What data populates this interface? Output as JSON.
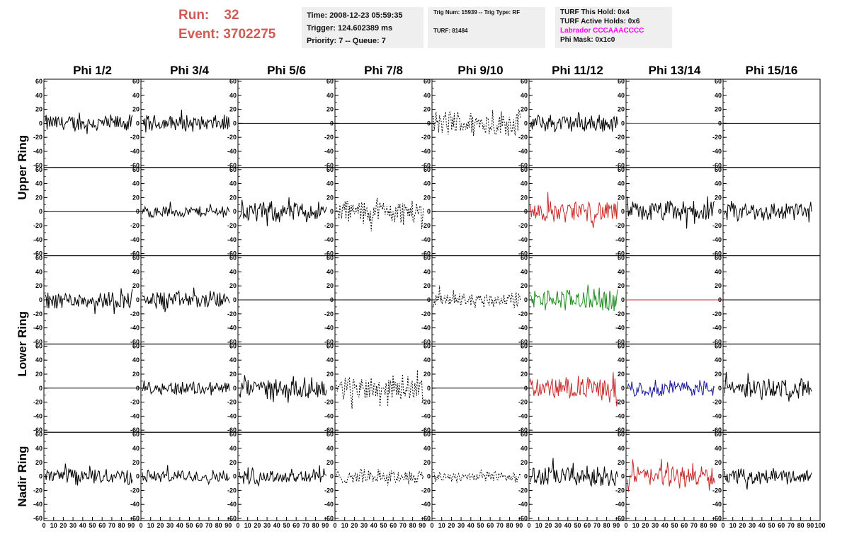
{
  "header": {
    "run_label": "Run:",
    "run_value": "32",
    "event_label": "Event:",
    "event_value": "3702275"
  },
  "time_box": {
    "time": "Time: 2008-12-23 05:59:35",
    "trigger": "Trigger: 124.602389 ms",
    "priority": "Priority: 7 -- Queue: 7"
  },
  "trig_box": {
    "trig_line": "Trig Num: 15939 -- Trig Type: RF",
    "turf_line": "TURF: 81484"
  },
  "turf_box": {
    "this_hold": "TURF This Hold: 0x4",
    "active_holds": "TURF Active Holds: 0x6",
    "labrador": "Labrador CCCAAACCCC",
    "phi_mask": "Phi Mask: 0x1c0"
  },
  "colors": {
    "run_text": "#d25a55",
    "labrador": "#ff00ff",
    "black": "#000000",
    "red": "#c62828",
    "green": "#1e8c1e",
    "blue": "#1a1a9a"
  },
  "chart_data": {
    "type": "line",
    "columns": [
      "Phi 1/2",
      "Phi 3/4",
      "Phi 5/6",
      "Phi 7/8",
      "Phi 9/10",
      "Phi 11/12",
      "Phi 13/14",
      "Phi 15/16"
    ],
    "ring_labels": [
      "Upper Ring",
      "Lower Ring",
      "Nadir Ring"
    ],
    "ylim": [
      -60,
      60
    ],
    "yticks": [
      -60,
      -40,
      -20,
      0,
      20,
      40,
      60
    ],
    "ytick_labels": [
      "-60",
      "-40",
      "-20",
      "0",
      "20",
      "40",
      "60"
    ],
    "xlim": [
      0,
      100
    ],
    "xticks": [
      0,
      10,
      20,
      30,
      40,
      50,
      60,
      70,
      80,
      90,
      100
    ],
    "xtick_labels": [
      "0",
      "10",
      "20",
      "30",
      "40",
      "50",
      "60",
      "70",
      "80",
      "90",
      "100"
    ],
    "rows": [
      [
        {
          "style": "solid",
          "color": "black",
          "amp": 12
        },
        {
          "style": "solid",
          "color": "black",
          "amp": 11
        },
        {
          "style": "flat",
          "color": "black",
          "amp": 0
        },
        {
          "style": "flat",
          "color": "black",
          "amp": 0
        },
        {
          "style": "dashed",
          "color": "black",
          "amp": 18
        },
        {
          "style": "solid",
          "color": "black",
          "amp": 13
        },
        {
          "style": "flat",
          "color": "red",
          "amp": 0
        },
        {
          "style": "flat",
          "color": "black",
          "amp": 0
        }
      ],
      [
        {
          "style": "flat",
          "color": "black",
          "amp": 0
        },
        {
          "style": "solid",
          "color": "black",
          "amp": 8
        },
        {
          "style": "solid",
          "color": "black",
          "amp": 14
        },
        {
          "style": "dashed",
          "color": "black",
          "amp": 17
        },
        {
          "style": "flat",
          "color": "black",
          "amp": 0
        },
        {
          "style": "solid",
          "color": "red",
          "amp": 15
        },
        {
          "style": "solid",
          "color": "black",
          "amp": 14
        },
        {
          "style": "solid",
          "color": "black",
          "amp": 14
        }
      ],
      [
        {
          "style": "solid",
          "color": "black",
          "amp": 12
        },
        {
          "style": "solid",
          "color": "black",
          "amp": 12
        },
        {
          "style": "flat",
          "color": "black",
          "amp": 0
        },
        {
          "style": "flat",
          "color": "black",
          "amp": 0
        },
        {
          "style": "dashed",
          "color": "black",
          "amp": 11
        },
        {
          "style": "solid",
          "color": "green",
          "amp": 15
        },
        {
          "style": "flat",
          "color": "red",
          "amp": 0
        },
        {
          "style": "flat",
          "color": "black",
          "amp": 0
        }
      ],
      [
        {
          "style": "flat",
          "color": "black",
          "amp": 0
        },
        {
          "style": "solid",
          "color": "black",
          "amp": 10
        },
        {
          "style": "solid",
          "color": "black",
          "amp": 14
        },
        {
          "style": "dashed",
          "color": "black",
          "amp": 17
        },
        {
          "style": "flat",
          "color": "black",
          "amp": 0
        },
        {
          "style": "solid",
          "color": "red",
          "amp": 15
        },
        {
          "style": "solid",
          "color": "blue",
          "amp": 12
        },
        {
          "style": "solid",
          "color": "black",
          "amp": 13
        }
      ],
      [
        {
          "style": "solid",
          "color": "black",
          "amp": 11
        },
        {
          "style": "solid",
          "color": "black",
          "amp": 9
        },
        {
          "style": "solid",
          "color": "black",
          "amp": 12
        },
        {
          "style": "dashed",
          "color": "black",
          "amp": 10
        },
        {
          "style": "dashed",
          "color": "black",
          "amp": 8
        },
        {
          "style": "solid",
          "color": "black",
          "amp": 14
        },
        {
          "style": "solid",
          "color": "red",
          "amp": 15
        },
        {
          "style": "solid",
          "color": "black",
          "amp": 10
        }
      ]
    ]
  }
}
